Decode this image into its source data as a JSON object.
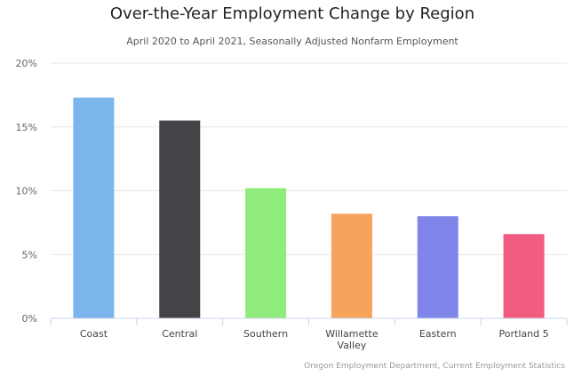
{
  "chart_data": {
    "type": "bar",
    "title": "Over-the-Year Employment Change by Region",
    "subtitle": "April 2020 to April 2021, Seasonally Adjusted Nonfarm Employment",
    "categories": [
      [
        "Coast"
      ],
      [
        "Central"
      ],
      [
        "Southern"
      ],
      [
        "Willamette",
        "Valley"
      ],
      [
        "Eastern"
      ],
      [
        "Portland 5"
      ]
    ],
    "values": [
      17.3,
      15.5,
      10.2,
      8.2,
      8.0,
      6.6
    ],
    "colors": [
      "#7cb5ec",
      "#434348",
      "#90ed7d",
      "#f7a35c",
      "#8085e9",
      "#f15c80"
    ],
    "y_ticks": [
      "0%",
      "5%",
      "10%",
      "15%",
      "20%"
    ],
    "y_tick_values": [
      0,
      5,
      10,
      15,
      20
    ],
    "ylim": [
      0,
      20
    ],
    "grid": true,
    "legend": "none",
    "credit": "Oregon Employment Department, Current Employment Statistics"
  }
}
